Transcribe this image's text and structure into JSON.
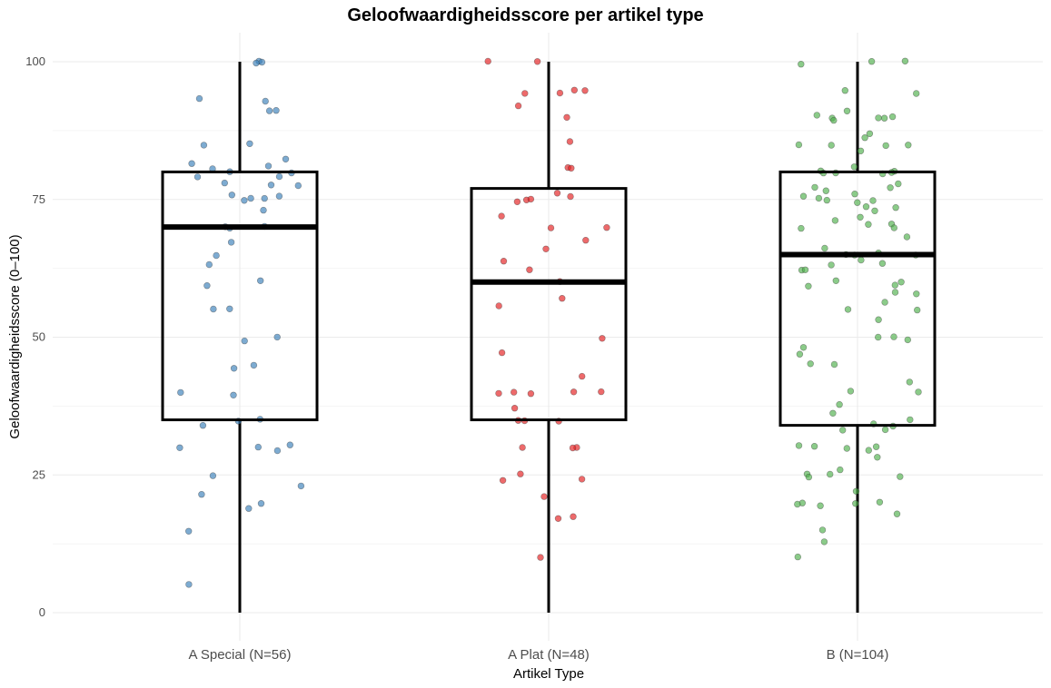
{
  "chart_data": {
    "type": "box",
    "title": "Geloofwaardigheidsscore per artikel type",
    "xlabel": "Artikel Type",
    "ylabel": "Geloofwaardigheidsscore (0–100)",
    "ylim": [
      -5,
      105
    ],
    "yticks": [
      0,
      25,
      50,
      75,
      100
    ],
    "grid": true,
    "categories": [
      "A Special (N=56)",
      "A Plat (N=48)",
      "B (N=104)"
    ],
    "boxes": [
      {
        "category": "A Special (N=56)",
        "min": 0,
        "q1": 35,
        "median": 70,
        "q3": 80,
        "max": 100,
        "color": "#377eb8"
      },
      {
        "category": "A Plat (N=48)",
        "min": 0,
        "q1": 35,
        "median": 60,
        "q3": 77,
        "max": 100,
        "color": "#e41a1c"
      },
      {
        "category": "B (N=104)",
        "min": 0,
        "q1": 34,
        "median": 65,
        "q3": 80,
        "max": 100,
        "color": "#4daf4a"
      }
    ],
    "points": [
      {
        "category": "A Special (N=56)",
        "values": [
          100,
          100,
          100,
          93.5,
          93,
          91,
          91,
          85,
          85,
          82.5,
          81.5,
          81,
          80.5,
          80,
          80,
          79,
          79,
          78,
          77.5,
          77.5,
          76,
          75.5,
          75,
          75,
          75,
          73,
          70,
          70,
          70,
          67,
          63,
          60,
          55,
          55,
          50,
          49.5,
          45,
          40,
          39.5,
          35,
          35,
          34,
          30.5,
          30,
          30,
          29.5,
          25,
          23,
          21.5,
          20,
          19,
          15,
          5,
          44.5,
          65,
          59.5
        ]
      },
      {
        "category": "A Plat (N=48)",
        "values": [
          100,
          100,
          95,
          95,
          94.5,
          94,
          92,
          90,
          85.5,
          81,
          80.5,
          76,
          75.5,
          75,
          75,
          74.5,
          72,
          70,
          70,
          67.5,
          66,
          64,
          62,
          57,
          55.5,
          47,
          43,
          40,
          40,
          40,
          40,
          40,
          37,
          35,
          35,
          35,
          30,
          30,
          30,
          25,
          24,
          24,
          21,
          17.5,
          17,
          10,
          60,
          50
        ]
      },
      {
        "category": "B (N=104)",
        "values": [
          100,
          100,
          99.5,
          95,
          94,
          91,
          90.5,
          90,
          90,
          90,
          90,
          89.5,
          87,
          86,
          85,
          85,
          85,
          85,
          84,
          80,
          80,
          80,
          80,
          80,
          79.5,
          78,
          77,
          77,
          76.5,
          76,
          75.5,
          75,
          75,
          75,
          74.5,
          73.5,
          73.5,
          73,
          71,
          70.5,
          70.5,
          70,
          70,
          66,
          65.5,
          65,
          65,
          65,
          64,
          63.5,
          63,
          62,
          60,
          60,
          59.5,
          59.5,
          58,
          56.5,
          55,
          53,
          50,
          50,
          49.5,
          47,
          45,
          40,
          40,
          35,
          34.5,
          34,
          33,
          33,
          30.5,
          30,
          30,
          30,
          29.5,
          28,
          25,
          25,
          24.5,
          24.5,
          20,
          20,
          20,
          19.5,
          19.5,
          18,
          15,
          13,
          10,
          45,
          55,
          62,
          68,
          72,
          58,
          48,
          42,
          38,
          36,
          26,
          22,
          81
        ]
      }
    ]
  },
  "style": {
    "box_stroke": "#000000",
    "grid_color": "#ebebeb",
    "background": "#ffffff"
  }
}
